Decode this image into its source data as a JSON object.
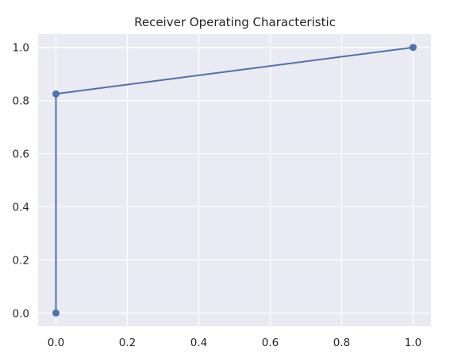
{
  "chart_data": {
    "type": "line",
    "title": "Receiver Operating Characteristic",
    "xlabel": "",
    "ylabel": "",
    "xlim": [
      -0.05,
      1.05
    ],
    "ylim": [
      -0.05,
      1.05
    ],
    "xticks": [
      "0.0",
      "0.2",
      "0.4",
      "0.6",
      "0.8",
      "1.0"
    ],
    "yticks": [
      "0.0",
      "0.2",
      "0.4",
      "0.6",
      "0.8",
      "1.0"
    ],
    "grid": true,
    "legend": "none",
    "series": [
      {
        "x": [
          0.0,
          0.0,
          1.0
        ],
        "y": [
          0.0,
          0.825,
          1.0
        ],
        "marker": "circle",
        "color": "#4c72b0"
      }
    ],
    "style": {
      "plot_background": "#eaeaf2",
      "grid_color": "#ffffff"
    }
  }
}
